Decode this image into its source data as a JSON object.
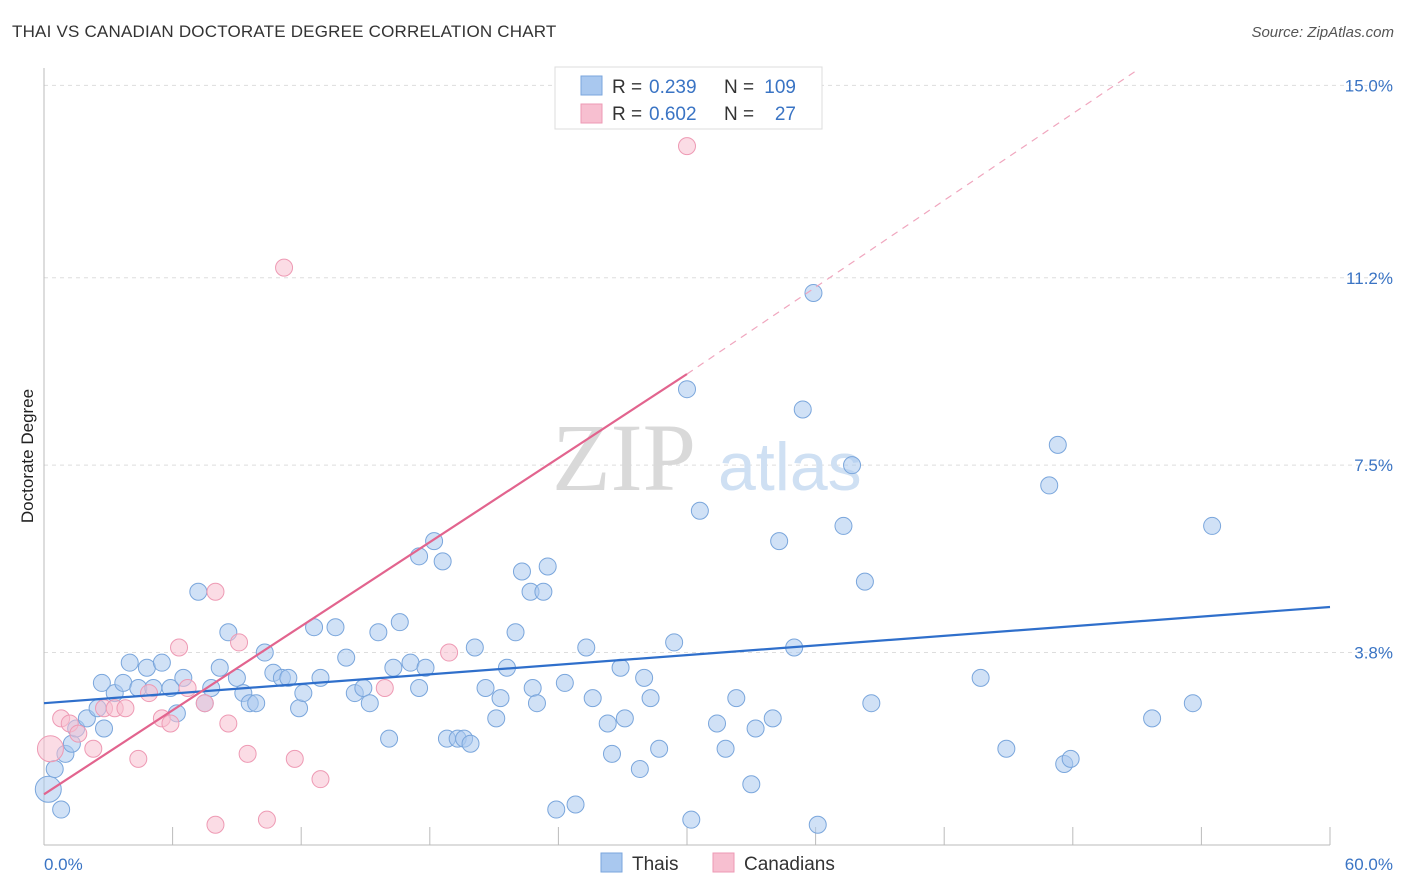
{
  "chart_data": {
    "type": "scatter",
    "title": "THAI VS CANADIAN DOCTORATE DEGREE CORRELATION CHART",
    "source": "Source: ZipAtlas.com",
    "ylabel": "Doctorate Degree",
    "xlim": [
      0,
      60
    ],
    "ylim": [
      0,
      15.5
    ],
    "x_tick_labels": [
      "0.0%",
      "60.0%"
    ],
    "y_ticks": [
      {
        "value": 3.8,
        "label": "3.8%"
      },
      {
        "value": 7.5,
        "label": "7.5%"
      },
      {
        "value": 11.2,
        "label": "11.2%"
      },
      {
        "value": 15.0,
        "label": "15.0%"
      }
    ],
    "grid": "horizontal dashed",
    "legend_position": "top-center",
    "watermark": {
      "zip": "ZIP",
      "atlas": "atlas"
    },
    "stats": [
      {
        "r_label": "R =",
        "r": "0.239",
        "n_label": "N =",
        "n": "109"
      },
      {
        "r_label": "R =",
        "r": "0.602",
        "n_label": "N =",
        "n": "27"
      }
    ],
    "series": [
      {
        "name": "Thais",
        "color": "#a9c8ef",
        "stroke": "#7aa6dc",
        "trend_color": "#2f6fcb",
        "trend": {
          "x0": 0,
          "y0": 2.8,
          "x1": 60,
          "y1": 4.7
        },
        "points": [
          [
            0.2,
            1.1
          ],
          [
            0.5,
            1.5
          ],
          [
            1.0,
            1.8
          ],
          [
            1.3,
            2.0
          ],
          [
            1.5,
            2.3
          ],
          [
            2.0,
            2.5
          ],
          [
            2.5,
            2.7
          ],
          [
            2.7,
            3.2
          ],
          [
            2.8,
            2.3
          ],
          [
            3.3,
            3.0
          ],
          [
            3.7,
            3.2
          ],
          [
            4.0,
            3.6
          ],
          [
            4.4,
            3.1
          ],
          [
            4.8,
            3.5
          ],
          [
            5.1,
            3.1
          ],
          [
            5.5,
            3.6
          ],
          [
            5.9,
            3.1
          ],
          [
            6.2,
            2.6
          ],
          [
            6.5,
            3.3
          ],
          [
            7.2,
            5.0
          ],
          [
            7.5,
            2.8
          ],
          [
            7.8,
            3.1
          ],
          [
            8.2,
            3.5
          ],
          [
            8.6,
            4.2
          ],
          [
            9.0,
            3.3
          ],
          [
            9.3,
            3.0
          ],
          [
            9.6,
            2.8
          ],
          [
            9.9,
            2.8
          ],
          [
            10.3,
            3.8
          ],
          [
            10.7,
            3.4
          ],
          [
            11.1,
            3.3
          ],
          [
            11.4,
            3.3
          ],
          [
            11.9,
            2.7
          ],
          [
            12.1,
            3.0
          ],
          [
            12.6,
            4.3
          ],
          [
            12.9,
            3.3
          ],
          [
            13.6,
            4.3
          ],
          [
            14.1,
            3.7
          ],
          [
            14.5,
            3.0
          ],
          [
            14.9,
            3.1
          ],
          [
            15.2,
            2.8
          ],
          [
            15.6,
            4.2
          ],
          [
            16.1,
            2.1
          ],
          [
            16.3,
            3.5
          ],
          [
            16.6,
            4.4
          ],
          [
            17.1,
            3.6
          ],
          [
            17.5,
            3.1
          ],
          [
            17.8,
            3.5
          ],
          [
            17.5,
            5.7
          ],
          [
            18.2,
            6.0
          ],
          [
            18.6,
            5.6
          ],
          [
            18.8,
            2.1
          ],
          [
            19.3,
            2.1
          ],
          [
            19.6,
            2.1
          ],
          [
            19.9,
            2.0
          ],
          [
            20.1,
            3.9
          ],
          [
            20.6,
            3.1
          ],
          [
            21.1,
            2.5
          ],
          [
            21.3,
            2.9
          ],
          [
            21.6,
            3.5
          ],
          [
            22.0,
            4.2
          ],
          [
            22.3,
            5.4
          ],
          [
            22.7,
            5.0
          ],
          [
            22.8,
            3.1
          ],
          [
            23.0,
            2.8
          ],
          [
            23.3,
            5.0
          ],
          [
            23.5,
            5.5
          ],
          [
            23.9,
            0.7
          ],
          [
            24.3,
            3.2
          ],
          [
            24.8,
            0.8
          ],
          [
            25.3,
            3.9
          ],
          [
            25.6,
            2.9
          ],
          [
            26.3,
            2.4
          ],
          [
            26.5,
            1.8
          ],
          [
            26.9,
            3.5
          ],
          [
            27.1,
            2.5
          ],
          [
            27.8,
            1.5
          ],
          [
            28.0,
            3.3
          ],
          [
            28.3,
            2.9
          ],
          [
            28.7,
            1.9
          ],
          [
            29.4,
            4.0
          ],
          [
            30.0,
            9.0
          ],
          [
            30.2,
            0.5
          ],
          [
            30.6,
            6.6
          ],
          [
            31.4,
            2.4
          ],
          [
            31.8,
            1.9
          ],
          [
            32.3,
            2.9
          ],
          [
            33.0,
            1.2
          ],
          [
            33.2,
            2.3
          ],
          [
            34.0,
            2.5
          ],
          [
            34.3,
            6.0
          ],
          [
            35.0,
            3.9
          ],
          [
            35.4,
            8.6
          ],
          [
            35.9,
            10.9
          ],
          [
            36.1,
            0.4
          ],
          [
            37.3,
            6.3
          ],
          [
            37.7,
            7.5
          ],
          [
            38.3,
            5.2
          ],
          [
            38.6,
            2.8
          ],
          [
            43.7,
            3.3
          ],
          [
            44.9,
            1.9
          ],
          [
            46.9,
            7.1
          ],
          [
            47.3,
            7.9
          ],
          [
            47.6,
            1.6
          ],
          [
            47.9,
            1.7
          ],
          [
            51.7,
            2.5
          ],
          [
            53.6,
            2.8
          ],
          [
            54.5,
            6.3
          ],
          [
            0.8,
            0.7
          ]
        ]
      },
      {
        "name": "Canadians",
        "color": "#f7bfd0",
        "stroke": "#ee9ab4",
        "trend_color": "#e2648e",
        "trend": {
          "x0": 0,
          "y0": 1.0,
          "x1": 30,
          "y1": 9.3
        },
        "trend_dashed": {
          "x0": 30,
          "y0": 9.3,
          "x1": 51,
          "y1": 15.3
        },
        "points": [
          [
            0.3,
            1.9
          ],
          [
            0.8,
            2.5
          ],
          [
            1.2,
            2.4
          ],
          [
            1.6,
            2.2
          ],
          [
            2.3,
            1.9
          ],
          [
            2.8,
            2.7
          ],
          [
            3.3,
            2.7
          ],
          [
            3.8,
            2.7
          ],
          [
            4.4,
            1.7
          ],
          [
            4.9,
            3.0
          ],
          [
            5.5,
            2.5
          ],
          [
            5.9,
            2.4
          ],
          [
            6.3,
            3.9
          ],
          [
            6.7,
            3.1
          ],
          [
            7.5,
            2.8
          ],
          [
            8.0,
            5.0
          ],
          [
            8.6,
            2.4
          ],
          [
            9.1,
            4.0
          ],
          [
            9.5,
            1.8
          ],
          [
            10.4,
            0.5
          ],
          [
            11.2,
            11.4
          ],
          [
            11.7,
            1.7
          ],
          [
            12.9,
            1.3
          ],
          [
            15.9,
            3.1
          ],
          [
            18.9,
            3.8
          ],
          [
            30.0,
            13.8
          ],
          [
            8.0,
            0.4
          ]
        ]
      }
    ]
  }
}
